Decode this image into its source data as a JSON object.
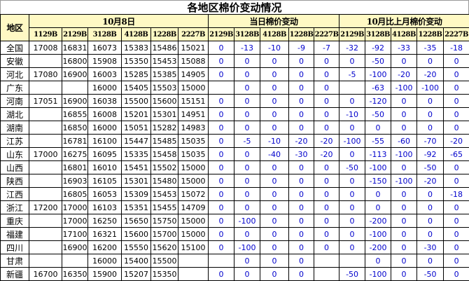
{
  "title": "各地区棉价变动情况",
  "header": {
    "region": "地区",
    "group1": "10月8日",
    "group2": "当日棉价变动",
    "group3": "10月比上月棉价变动",
    "price_cols": [
      "1129B",
      "2129B",
      "3128B",
      "4128B",
      "1228B",
      "2227B"
    ],
    "daily_cols": [
      "2129B",
      "3128B",
      "4128B",
      "1228B",
      "2227B"
    ],
    "monthly_cols": [
      "2129B",
      "3128B",
      "4128B",
      "1228B",
      "2227B"
    ]
  },
  "colors": {
    "header_bg": "#FFF9C4",
    "change_text": "#0000CC"
  },
  "rows": [
    {
      "region": "全国",
      "prices": [
        "17008",
        "16831",
        "16073",
        "15383",
        "15486",
        "15021"
      ],
      "daily": [
        "0",
        "-13",
        "-10",
        "-9",
        "-7"
      ],
      "monthly": [
        "-32",
        "-92",
        "-33",
        "-35",
        "-18"
      ]
    },
    {
      "region": "安徽",
      "prices": [
        "",
        "16800",
        "15908",
        "15350",
        "15453",
        "15088"
      ],
      "daily": [
        "0",
        "0",
        "0",
        "0",
        "0"
      ],
      "monthly": [
        "0",
        "-50",
        "0",
        "0",
        "0"
      ]
    },
    {
      "region": "河北",
      "prices": [
        "17080",
        "16900",
        "16003",
        "15285",
        "15385",
        "14905"
      ],
      "daily": [
        "0",
        "0",
        "0",
        "0",
        "0"
      ],
      "monthly": [
        "-5",
        "-100",
        "-20",
        "-20",
        "0"
      ]
    },
    {
      "region": "广东",
      "prices": [
        "",
        "",
        "16000",
        "15405",
        "15503",
        "15000"
      ],
      "daily": [
        "",
        "0",
        "0",
        "0",
        "0"
      ],
      "monthly": [
        "",
        "-63",
        "-100",
        "-100",
        "0"
      ]
    },
    {
      "region": "河南",
      "prices": [
        "17051",
        "16900",
        "16038",
        "15500",
        "15600",
        "15151"
      ],
      "daily": [
        "0",
        "0",
        "0",
        "0",
        "0"
      ],
      "monthly": [
        "0",
        "-120",
        "0",
        "0",
        "0"
      ]
    },
    {
      "region": "湖北",
      "prices": [
        "",
        "16855",
        "16008",
        "15201",
        "15301",
        "14951"
      ],
      "daily": [
        "0",
        "0",
        "0",
        "0",
        "0"
      ],
      "monthly": [
        "-10",
        "-50",
        "0",
        "0",
        "0"
      ]
    },
    {
      "region": "湖南",
      "prices": [
        "",
        "16850",
        "16000",
        "15051",
        "15282",
        "14983"
      ],
      "daily": [
        "0",
        "0",
        "0",
        "0",
        "0"
      ],
      "monthly": [
        "0",
        "0",
        "0",
        "0",
        "0"
      ]
    },
    {
      "region": "江苏",
      "prices": [
        "",
        "16781",
        "16100",
        "15447",
        "15485",
        "15035"
      ],
      "daily": [
        "0",
        "-5",
        "-10",
        "-20",
        "-20"
      ],
      "monthly": [
        "-100",
        "-55",
        "-60",
        "-70",
        "-20"
      ]
    },
    {
      "region": "山东",
      "prices": [
        "17000",
        "16275",
        "16095",
        "15335",
        "15458",
        "15035"
      ],
      "daily": [
        "0",
        "0",
        "-40",
        "-30",
        "-20"
      ],
      "monthly": [
        "0",
        "-113",
        "-100",
        "-92",
        "-65"
      ]
    },
    {
      "region": "山西",
      "prices": [
        "",
        "16801",
        "16010",
        "15451",
        "15502",
        "15000"
      ],
      "daily": [
        "0",
        "0",
        "0",
        "0",
        "0"
      ],
      "monthly": [
        "-50",
        "-100",
        "0",
        "-50",
        "0"
      ]
    },
    {
      "region": "陕西",
      "prices": [
        "",
        "16903",
        "16105",
        "15301",
        "15480",
        "15000"
      ],
      "daily": [
        "0",
        "0",
        "0",
        "0",
        "0"
      ],
      "monthly": [
        "0",
        "-150",
        "-100",
        "-20",
        "0"
      ]
    },
    {
      "region": "江西",
      "prices": [
        "",
        "16805",
        "16053",
        "15309",
        "15453",
        "15072"
      ],
      "daily": [
        "0",
        "0",
        "0",
        "0",
        "0"
      ],
      "monthly": [
        "0",
        "0",
        "0",
        "0",
        "-18"
      ]
    },
    {
      "region": "浙江",
      "prices": [
        "17200",
        "17000",
        "16103",
        "15351",
        "15455",
        "14709"
      ],
      "daily": [
        "0",
        "0",
        "0",
        "0",
        "0"
      ],
      "monthly": [
        "0",
        "0",
        "0",
        "0",
        "0"
      ]
    },
    {
      "region": "重庆",
      "prices": [
        "",
        "17000",
        "16250",
        "15650",
        "15750",
        "15000"
      ],
      "daily": [
        "0",
        "-100",
        "0",
        "0",
        "0"
      ],
      "monthly": [
        "0",
        "-200",
        "0",
        "0",
        "0"
      ]
    },
    {
      "region": "福建",
      "prices": [
        "",
        "17100",
        "16321",
        "15600",
        "15700",
        "15000"
      ],
      "daily": [
        "0",
        "0",
        "0",
        "0",
        "0"
      ],
      "monthly": [
        "0",
        "-100",
        "0",
        "0",
        "0"
      ]
    },
    {
      "region": "四川",
      "prices": [
        "",
        "16900",
        "16200",
        "15550",
        "15620",
        "15100"
      ],
      "daily": [
        "0",
        "-100",
        "0",
        "0",
        "0"
      ],
      "monthly": [
        "0",
        "-200",
        "0",
        "-30",
        "0"
      ]
    },
    {
      "region": "甘肃",
      "prices": [
        "",
        "",
        "16000",
        "15400",
        "15500",
        ""
      ],
      "daily": [
        "",
        "0",
        "0",
        "0",
        ""
      ],
      "monthly": [
        "",
        "0",
        "0",
        "0",
        "0"
      ]
    },
    {
      "region": "新疆",
      "prices": [
        "16700",
        "16350",
        "15900",
        "15207",
        "15350",
        ""
      ],
      "daily": [
        "0",
        "0",
        "0",
        "0",
        ""
      ],
      "monthly": [
        "-50",
        "-100",
        "0",
        "-50",
        "0"
      ]
    }
  ]
}
